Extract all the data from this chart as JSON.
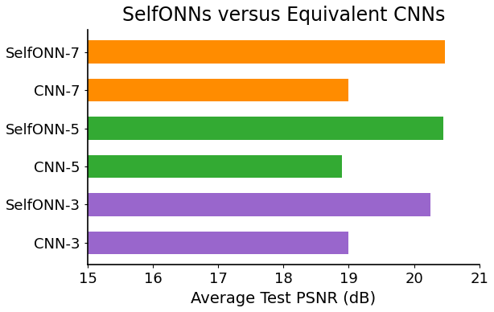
{
  "categories": [
    "CNN-3",
    "SelfONN-3",
    "CNN-5",
    "SelfONN-5",
    "CNN-7",
    "SelfONN-7"
  ],
  "values": [
    19.0,
    20.25,
    18.9,
    20.45,
    19.0,
    20.48
  ],
  "colors": [
    "#9966cc",
    "#9966cc",
    "#33aa33",
    "#33aa33",
    "#ff8c00",
    "#ff8c00"
  ],
  "title": "SelfONNs versus Equivalent CNNs",
  "xlabel": "Average Test PSNR (dB)",
  "xlim": [
    15,
    21
  ],
  "xticks": [
    15,
    16,
    17,
    18,
    19,
    20,
    21
  ],
  "title_fontsize": 17,
  "label_fontsize": 14,
  "tick_fontsize": 13,
  "bar_height": 0.6,
  "figsize": [
    6.14,
    3.88
  ],
  "dpi": 100
}
